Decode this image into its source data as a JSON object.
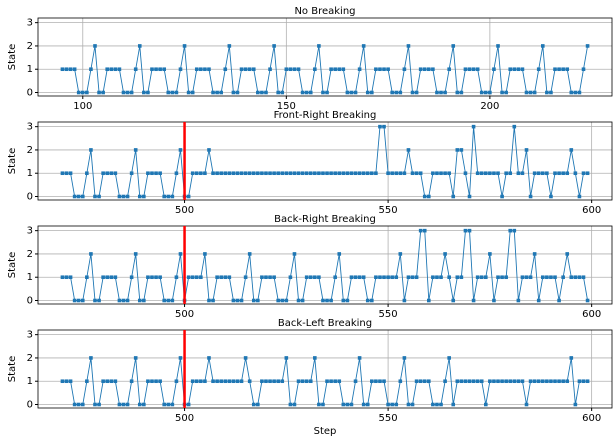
{
  "chart_data": [
    {
      "type": "line",
      "title": "No Breaking",
      "ylabel": "State",
      "color": "#1f77b4",
      "grid": true,
      "xlim": [
        89,
        230
      ],
      "ylim": [
        -0.15,
        3.2
      ],
      "xticks": [
        100,
        150,
        200
      ],
      "yticks": [
        0,
        1,
        2,
        3
      ],
      "x": [
        95,
        96,
        97,
        98,
        99,
        100,
        101,
        102,
        103,
        104,
        105,
        106,
        107,
        108,
        109,
        110,
        111,
        112,
        113,
        114,
        115,
        116,
        117,
        118,
        119,
        120,
        121,
        122,
        123,
        124,
        125,
        126,
        127,
        128,
        129,
        130,
        131,
        132,
        133,
        134,
        135,
        136,
        137,
        138,
        139,
        140,
        141,
        142,
        143,
        144,
        145,
        146,
        147,
        148,
        149,
        150,
        151,
        152,
        153,
        154,
        155,
        156,
        157,
        158,
        159,
        160,
        161,
        162,
        163,
        164,
        165,
        166,
        167,
        168,
        169,
        170,
        171,
        172,
        173,
        174,
        175,
        176,
        177,
        178,
        179,
        180,
        181,
        182,
        183,
        184,
        185,
        186,
        187,
        188,
        189,
        190,
        191,
        192,
        193,
        194,
        195,
        196,
        197,
        198,
        199,
        200,
        201,
        202,
        203,
        204,
        205,
        206,
        207,
        208,
        209,
        210,
        211,
        212,
        213,
        214,
        215,
        216,
        217,
        218,
        219,
        220,
        221,
        222,
        223,
        224
      ],
      "values": [
        1,
        1,
        1,
        1,
        0,
        0,
        0,
        1,
        2,
        0,
        0,
        1,
        1,
        1,
        1,
        0,
        0,
        0,
        1,
        2,
        0,
        0,
        1,
        1,
        1,
        1,
        0,
        0,
        0,
        1,
        2,
        0,
        0,
        1,
        1,
        1,
        1,
        0,
        0,
        0,
        1,
        2,
        0,
        0,
        1,
        1,
        1,
        1,
        0,
        0,
        0,
        1,
        2,
        0,
        0,
        1,
        1,
        1,
        1,
        0,
        0,
        0,
        1,
        2,
        0,
        0,
        1,
        1,
        1,
        1,
        0,
        0,
        0,
        1,
        2,
        0,
        0,
        1,
        1,
        1,
        1,
        0,
        0,
        0,
        1,
        2,
        0,
        0,
        1,
        1,
        1,
        1,
        0,
        0,
        0,
        1,
        2,
        0,
        0,
        1,
        1,
        1,
        1,
        0,
        0,
        0,
        1,
        2,
        0,
        0,
        1,
        1,
        1,
        1,
        0,
        0,
        0,
        1,
        2,
        0,
        0,
        1,
        1,
        1,
        1,
        0,
        0,
        0,
        1,
        2
      ]
    },
    {
      "type": "line",
      "title": "Front-Right Breaking",
      "ylabel": "State",
      "color": "#1f77b4",
      "grid": true,
      "vline": 500,
      "vline_color": "#ff0000",
      "xlim": [
        464,
        605
      ],
      "ylim": [
        -0.15,
        3.2
      ],
      "xticks": [
        500,
        550,
        600
      ],
      "yticks": [
        0,
        1,
        2,
        3
      ],
      "x": [
        470,
        471,
        472,
        473,
        474,
        475,
        476,
        477,
        478,
        479,
        480,
        481,
        482,
        483,
        484,
        485,
        486,
        487,
        488,
        489,
        490,
        491,
        492,
        493,
        494,
        495,
        496,
        497,
        498,
        499,
        500,
        501,
        502,
        503,
        504,
        505,
        506,
        507,
        508,
        509,
        510,
        511,
        512,
        513,
        514,
        515,
        516,
        517,
        518,
        519,
        520,
        521,
        522,
        523,
        524,
        525,
        526,
        527,
        528,
        529,
        530,
        531,
        532,
        533,
        534,
        535,
        536,
        537,
        538,
        539,
        540,
        541,
        542,
        543,
        544,
        545,
        546,
        547,
        548,
        549,
        550,
        551,
        552,
        553,
        554,
        555,
        556,
        557,
        558,
        559,
        560,
        561,
        562,
        563,
        564,
        565,
        566,
        567,
        568,
        569,
        570,
        571,
        572,
        573,
        574,
        575,
        576,
        577,
        578,
        579,
        580,
        581,
        582,
        583,
        584,
        585,
        586,
        587,
        588,
        589,
        590,
        591,
        592,
        593,
        594,
        595,
        596,
        597,
        598,
        599
      ],
      "values": [
        1,
        1,
        1,
        0,
        0,
        0,
        1,
        2,
        0,
        0,
        1,
        1,
        1,
        1,
        0,
        0,
        0,
        1,
        2,
        0,
        0,
        1,
        1,
        1,
        1,
        0,
        0,
        0,
        1,
        2,
        0,
        0,
        1,
        1,
        1,
        1,
        2,
        1,
        1,
        1,
        1,
        1,
        1,
        1,
        1,
        1,
        1,
        1,
        1,
        1,
        1,
        1,
        1,
        1,
        1,
        1,
        1,
        1,
        1,
        1,
        1,
        1,
        1,
        1,
        1,
        1,
        1,
        1,
        1,
        1,
        1,
        1,
        1,
        1,
        1,
        1,
        1,
        1,
        3,
        3,
        1,
        1,
        1,
        1,
        1,
        2,
        1,
        1,
        1,
        0,
        0,
        1,
        1,
        1,
        1,
        1,
        0,
        2,
        2,
        1,
        0,
        3,
        1,
        1,
        1,
        1,
        1,
        1,
        0,
        1,
        1,
        3,
        1,
        1,
        2,
        0,
        1,
        1,
        1,
        1,
        0,
        1,
        1,
        1,
        1,
        2,
        1,
        0,
        1,
        1
      ]
    },
    {
      "type": "line",
      "title": "Back-Right Breaking",
      "ylabel": "State",
      "color": "#1f77b4",
      "grid": true,
      "vline": 500,
      "vline_color": "#ff0000",
      "xlim": [
        464,
        605
      ],
      "ylim": [
        -0.15,
        3.2
      ],
      "xticks": [
        500,
        550,
        600
      ],
      "yticks": [
        0,
        1,
        2,
        3
      ],
      "x": [
        470,
        471,
        472,
        473,
        474,
        475,
        476,
        477,
        478,
        479,
        480,
        481,
        482,
        483,
        484,
        485,
        486,
        487,
        488,
        489,
        490,
        491,
        492,
        493,
        494,
        495,
        496,
        497,
        498,
        499,
        500,
        501,
        502,
        503,
        504,
        505,
        506,
        507,
        508,
        509,
        510,
        511,
        512,
        513,
        514,
        515,
        516,
        517,
        518,
        519,
        520,
        521,
        522,
        523,
        524,
        525,
        526,
        527,
        528,
        529,
        530,
        531,
        532,
        533,
        534,
        535,
        536,
        537,
        538,
        539,
        540,
        541,
        542,
        543,
        544,
        545,
        546,
        547,
        548,
        549,
        550,
        551,
        552,
        553,
        554,
        555,
        556,
        557,
        558,
        559,
        560,
        561,
        562,
        563,
        564,
        565,
        566,
        567,
        568,
        569,
        570,
        571,
        572,
        573,
        574,
        575,
        576,
        577,
        578,
        579,
        580,
        581,
        582,
        583,
        584,
        585,
        586,
        587,
        588,
        589,
        590,
        591,
        592,
        593,
        594,
        595,
        596,
        597,
        598,
        599
      ],
      "values": [
        1,
        1,
        1,
        0,
        0,
        0,
        1,
        2,
        0,
        0,
        1,
        1,
        1,
        1,
        0,
        0,
        0,
        1,
        2,
        0,
        0,
        1,
        1,
        1,
        1,
        0,
        0,
        0,
        1,
        2,
        0,
        1,
        1,
        1,
        1,
        2,
        0,
        0,
        1,
        1,
        1,
        1,
        0,
        0,
        0,
        1,
        2,
        0,
        0,
        1,
        1,
        1,
        1,
        0,
        0,
        0,
        1,
        2,
        0,
        0,
        1,
        1,
        1,
        1,
        0,
        0,
        0,
        1,
        2,
        0,
        0,
        1,
        1,
        1,
        1,
        0,
        0,
        1,
        1,
        1,
        1,
        1,
        1,
        2,
        0,
        1,
        1,
        1,
        3,
        3,
        0,
        1,
        1,
        1,
        2,
        1,
        0,
        1,
        1,
        3,
        3,
        0,
        1,
        1,
        1,
        2,
        0,
        1,
        1,
        1,
        3,
        3,
        0,
        1,
        1,
        1,
        2,
        0,
        1,
        1,
        1,
        1,
        0,
        1,
        2,
        1,
        1,
        1,
        1,
        0
      ]
    },
    {
      "type": "line",
      "title": "Back-Left Breaking",
      "ylabel": "State",
      "xlabel": "Step",
      "color": "#1f77b4",
      "grid": true,
      "vline": 500,
      "vline_color": "#ff0000",
      "xlim": [
        464,
        605
      ],
      "ylim": [
        -0.15,
        3.2
      ],
      "xticks": [
        500,
        550,
        600
      ],
      "yticks": [
        0,
        1,
        2,
        3
      ],
      "x": [
        470,
        471,
        472,
        473,
        474,
        475,
        476,
        477,
        478,
        479,
        480,
        481,
        482,
        483,
        484,
        485,
        486,
        487,
        488,
        489,
        490,
        491,
        492,
        493,
        494,
        495,
        496,
        497,
        498,
        499,
        500,
        501,
        502,
        503,
        504,
        505,
        506,
        507,
        508,
        509,
        510,
        511,
        512,
        513,
        514,
        515,
        516,
        517,
        518,
        519,
        520,
        521,
        522,
        523,
        524,
        525,
        526,
        527,
        528,
        529,
        530,
        531,
        532,
        533,
        534,
        535,
        536,
        537,
        538,
        539,
        540,
        541,
        542,
        543,
        544,
        545,
        546,
        547,
        548,
        549,
        550,
        551,
        552,
        553,
        554,
        555,
        556,
        557,
        558,
        559,
        560,
        561,
        562,
        563,
        564,
        565,
        566,
        567,
        568,
        569,
        570,
        571,
        572,
        573,
        574,
        575,
        576,
        577,
        578,
        579,
        580,
        581,
        582,
        583,
        584,
        585,
        586,
        587,
        588,
        589,
        590,
        591,
        592,
        593,
        594,
        595,
        596,
        597,
        598,
        599
      ],
      "values": [
        1,
        1,
        1,
        0,
        0,
        0,
        1,
        2,
        0,
        0,
        1,
        1,
        1,
        1,
        0,
        0,
        0,
        1,
        2,
        0,
        0,
        1,
        1,
        1,
        1,
        0,
        0,
        0,
        1,
        2,
        0,
        0,
        1,
        1,
        1,
        1,
        2,
        1,
        1,
        1,
        1,
        1,
        1,
        1,
        1,
        2,
        1,
        0,
        0,
        1,
        1,
        1,
        1,
        1,
        1,
        2,
        0,
        0,
        1,
        1,
        1,
        1,
        2,
        0,
        0,
        1,
        1,
        1,
        1,
        0,
        0,
        0,
        1,
        2,
        0,
        0,
        1,
        1,
        1,
        1,
        0,
        0,
        0,
        1,
        2,
        0,
        0,
        1,
        1,
        1,
        1,
        0,
        0,
        0,
        1,
        2,
        0,
        1,
        1,
        1,
        1,
        1,
        1,
        1,
        0,
        1,
        1,
        1,
        1,
        1,
        1,
        1,
        1,
        1,
        0,
        1,
        1,
        1,
        1,
        1,
        1,
        1,
        1,
        1,
        1,
        2,
        0,
        1,
        1,
        1
      ]
    }
  ]
}
